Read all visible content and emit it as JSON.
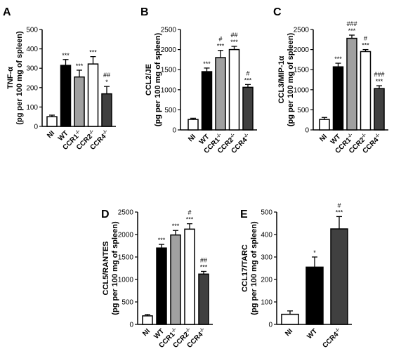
{
  "chart_data": [
    {
      "panel": "A",
      "type": "bar",
      "ylabel": "TNF-α",
      "ylabel2": "(pg per 100 mg of spleen)",
      "ylim": [
        0,
        500
      ],
      "yticks": [
        0,
        100,
        200,
        300,
        400,
        500
      ],
      "categories": [
        {
          "base": "NI",
          "sup": ""
        },
        {
          "base": "WT",
          "sup": ""
        },
        {
          "base": "CCR1",
          "sup": "-/-"
        },
        {
          "base": "CCR2",
          "sup": "-/-"
        },
        {
          "base": "CCR4",
          "sup": "-/-"
        }
      ],
      "values": [
        50,
        315,
        255,
        322,
        168
      ],
      "errors": [
        8,
        30,
        35,
        38,
        38
      ],
      "fills": [
        "#ffffff",
        "#000000",
        "#a0a0a0",
        "#ffffff",
        "#404040"
      ],
      "annotations": [
        [],
        [
          "***"
        ],
        [
          "***"
        ],
        [
          "***"
        ],
        [
          "*",
          "##"
        ]
      ]
    },
    {
      "panel": "B",
      "type": "bar",
      "ylabel": "CCL2/JE",
      "ylabel2": "(pg per 100 mg of spleen)",
      "ylim": [
        0,
        2500
      ],
      "yticks": [
        0,
        500,
        1000,
        1500,
        2000,
        2500
      ],
      "categories": [
        {
          "base": "NI",
          "sup": ""
        },
        {
          "base": "WT",
          "sup": ""
        },
        {
          "base": "CCR1",
          "sup": "-/-"
        },
        {
          "base": "CCR2",
          "sup": "-/-"
        },
        {
          "base": "CCR4",
          "sup": "-/-"
        }
      ],
      "values": [
        260,
        1450,
        1800,
        2000,
        1060
      ],
      "errors": [
        30,
        90,
        180,
        80,
        70
      ],
      "fills": [
        "#ffffff",
        "#000000",
        "#a0a0a0",
        "#ffffff",
        "#404040"
      ],
      "annotations": [
        [],
        [
          "***"
        ],
        [
          "***",
          "#"
        ],
        [
          "***",
          "##"
        ],
        [
          "***",
          "#"
        ]
      ]
    },
    {
      "panel": "C",
      "type": "bar",
      "ylabel": "CCL3/MIP-1α",
      "ylabel2": "(pg per 100 mg of spleen)",
      "ylim": [
        0,
        2500
      ],
      "yticks": [
        0,
        500,
        1000,
        1500,
        2000,
        2500
      ],
      "categories": [
        {
          "base": "NI",
          "sup": ""
        },
        {
          "base": "WT",
          "sup": ""
        },
        {
          "base": "CCR1",
          "sup": "-/-"
        },
        {
          "base": "CCR2",
          "sup": "-/-"
        },
        {
          "base": "CCR4",
          "sup": "-/-"
        }
      ],
      "values": [
        260,
        1570,
        2280,
        1950,
        1030
      ],
      "errors": [
        50,
        90,
        80,
        50,
        70
      ],
      "fills": [
        "#ffffff",
        "#000000",
        "#a0a0a0",
        "#ffffff",
        "#404040"
      ],
      "annotations": [
        [],
        [
          "***"
        ],
        [
          "***",
          "###"
        ],
        [
          "***",
          "#"
        ],
        [
          "***",
          "###"
        ]
      ]
    },
    {
      "panel": "D",
      "type": "bar",
      "ylabel": "CCL5/RANTES",
      "ylabel2": "(pg per 100 mg of spleen)",
      "ylim": [
        0,
        2500
      ],
      "yticks": [
        0,
        500,
        1000,
        1500,
        2000,
        2500
      ],
      "categories": [
        {
          "base": "NI",
          "sup": ""
        },
        {
          "base": "WT",
          "sup": ""
        },
        {
          "base": "CCR1",
          "sup": "-/-"
        },
        {
          "base": "CCR2",
          "sup": "-/-"
        },
        {
          "base": "CCR4",
          "sup": "-/-"
        }
      ],
      "values": [
        190,
        1700,
        1990,
        2120,
        1120
      ],
      "errors": [
        30,
        80,
        100,
        120,
        60
      ],
      "fills": [
        "#ffffff",
        "#000000",
        "#a0a0a0",
        "#ffffff",
        "#404040"
      ],
      "annotations": [
        [],
        [
          "***"
        ],
        [
          "***"
        ],
        [
          "***",
          "#"
        ],
        [
          "***",
          "##"
        ]
      ]
    },
    {
      "panel": "E",
      "type": "bar",
      "ylabel": "CCL17/TARC",
      "ylabel2": "(pg per 100 mg of spleen)",
      "ylim": [
        0,
        500
      ],
      "yticks": [
        0,
        100,
        200,
        300,
        400,
        500
      ],
      "categories": [
        {
          "base": "NI",
          "sup": ""
        },
        {
          "base": "WT",
          "sup": ""
        },
        {
          "base": "CCR4",
          "sup": "-/-"
        }
      ],
      "values": [
        45,
        255,
        425
      ],
      "errors": [
        15,
        45,
        55
      ],
      "fills": [
        "#ffffff",
        "#000000",
        "#404040"
      ],
      "annotations": [
        [],
        [
          "*"
        ],
        [
          "***",
          "#"
        ]
      ]
    }
  ]
}
